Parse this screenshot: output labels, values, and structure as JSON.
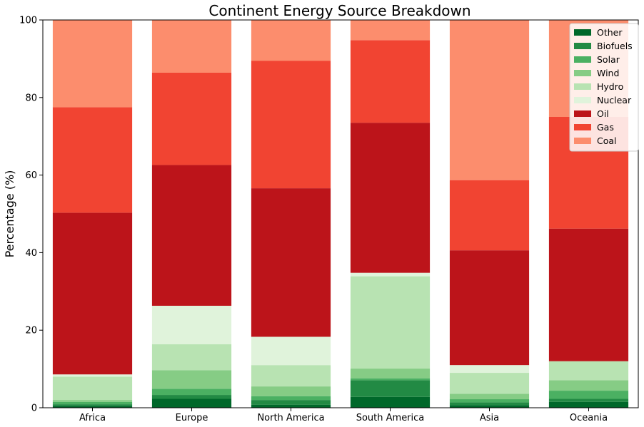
{
  "chart_data": {
    "type": "bar",
    "stacked": true,
    "title": "Continent Energy Source Breakdown",
    "xlabel": "",
    "ylabel": "Percentage (%)",
    "ylim": [
      0,
      100
    ],
    "yticks": [
      0,
      20,
      40,
      60,
      80,
      100
    ],
    "grid": false,
    "legend_position": "top-right",
    "categories": [
      "Africa",
      "Europe",
      "North America",
      "South America",
      "Asia",
      "Oceania"
    ],
    "series": [
      {
        "name": "Other",
        "color": "#00682a",
        "values": [
          0.5,
          2.3,
          0.8,
          2.8,
          0.7,
          1.5
        ]
      },
      {
        "name": "Biofuels",
        "color": "#228a44",
        "values": [
          0.4,
          1.0,
          1.2,
          4.3,
          0.7,
          0.8
        ]
      },
      {
        "name": "Solar",
        "color": "#4bb062",
        "values": [
          0.6,
          1.6,
          1.0,
          0.5,
          0.8,
          2.1
        ]
      },
      {
        "name": "Wind",
        "color": "#86cc85",
        "values": [
          0.5,
          4.8,
          2.5,
          2.5,
          1.4,
          2.7
        ]
      },
      {
        "name": "Hydro",
        "color": "#b8e3b2",
        "values": [
          6.0,
          6.7,
          5.5,
          23.8,
          5.4,
          4.9
        ]
      },
      {
        "name": "Nuclear",
        "color": "#e0f3db",
        "values": [
          0.6,
          9.9,
          7.3,
          0.9,
          2.0,
          0.0
        ]
      },
      {
        "name": "Oil",
        "color": "#bc141a",
        "values": [
          41.7,
          36.3,
          38.3,
          38.7,
          29.6,
          34.2
        ]
      },
      {
        "name": "Gas",
        "color": "#f14432",
        "values": [
          27.2,
          23.8,
          32.9,
          21.3,
          18.1,
          28.8
        ]
      },
      {
        "name": "Coal",
        "color": "#fc8d6d",
        "values": [
          22.5,
          13.6,
          10.5,
          5.2,
          41.3,
          25.0
        ]
      }
    ]
  }
}
